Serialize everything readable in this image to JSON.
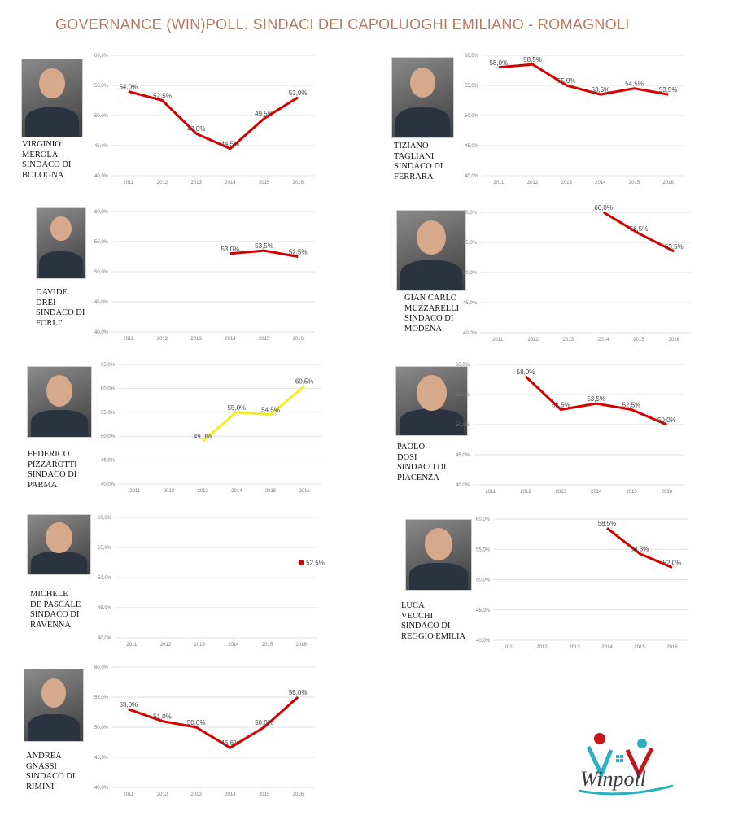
{
  "title": "GOVERNANCE (WIN)POLL. SINDACI DEI CAPOLUOGHI EMILIANO - ROMAGNOLI",
  "logo": {
    "text": "winpoll",
    "colors": {
      "red": "#c4161c",
      "teal": "#2ab0bf"
    }
  },
  "colors": {
    "line_default": "#d40000",
    "line_parma": "#f2ee22",
    "title": "#b8785a",
    "grid": "#e2e2e2"
  },
  "chart_data": [
    {
      "type": "line",
      "id": "bologna",
      "caption": [
        "VIRGINIO",
        "MEROLA",
        "SINDACO DI",
        "BOLOGNA"
      ],
      "categories": [
        "2011",
        "2012",
        "2013",
        "2014",
        "2015",
        "2016"
      ],
      "yticks": [
        "40,0%",
        "45,0%",
        "50,0%",
        "55,0%",
        "60,0%"
      ],
      "ylim": [
        40,
        60
      ],
      "values": [
        54.0,
        52.5,
        47.0,
        44.5,
        49.5,
        53.0
      ],
      "labels": [
        "54,0%",
        "52,5%",
        "47,0%",
        "44,5%",
        "49,5%",
        "53,0%"
      ],
      "color": "#d40000"
    },
    {
      "type": "line",
      "id": "ferrara",
      "caption": [
        "TIZIANO",
        "TAGLIANI",
        "SINDACO DI",
        "FERRARA"
      ],
      "categories": [
        "2011",
        "2012",
        "2013",
        "2014",
        "2015",
        "2016"
      ],
      "yticks": [
        "40,0%",
        "45,0%",
        "50,0%",
        "55,0%",
        "60,0%"
      ],
      "ylim": [
        40,
        60
      ],
      "values": [
        58.0,
        58.5,
        55.0,
        53.5,
        54.5,
        53.5
      ],
      "labels": [
        "58,0%",
        "58,5%",
        "55,0%",
        "53,5%",
        "54,5%",
        "53,5%"
      ],
      "color": "#d40000"
    },
    {
      "type": "line",
      "id": "forli",
      "caption": [
        "DAVIDE",
        "DREI",
        "SINDACO DI",
        "FORLI'"
      ],
      "categories": [
        "2011",
        "2012",
        "2013",
        "2014",
        "2015",
        "2016"
      ],
      "yticks": [
        "40,0%",
        "45,0%",
        "50,0%",
        "55,0%",
        "60,0%"
      ],
      "ylim": [
        40,
        60
      ],
      "values": [
        null,
        null,
        null,
        53.0,
        53.5,
        52.5
      ],
      "labels": [
        null,
        null,
        null,
        "53,0%",
        "53,5%",
        "52,5%"
      ],
      "color": "#d40000"
    },
    {
      "type": "line",
      "id": "modena",
      "caption": [
        "GIAN CARLO",
        "MUZZARELLI",
        "SINDACO DI",
        "MODENA"
      ],
      "categories": [
        "2011",
        "2012",
        "2013",
        "2014",
        "2015",
        "2016"
      ],
      "yticks": [
        "40,0%",
        "45,0%",
        "50,0%",
        "55,0%",
        "60,0%"
      ],
      "ylim": [
        40,
        60
      ],
      "values": [
        null,
        null,
        null,
        60.0,
        56.5,
        53.5
      ],
      "labels": [
        null,
        null,
        null,
        "60,0%",
        "56,5%",
        "53,5%"
      ],
      "color": "#d40000"
    },
    {
      "type": "line",
      "id": "parma",
      "caption": [
        "FEDERICO",
        "PIZZAROTTI",
        "SINDACO DI",
        "PARMA"
      ],
      "categories": [
        "2011",
        "2012",
        "2013",
        "2014",
        "2015",
        "2016"
      ],
      "yticks": [
        "40,0%",
        "45,0%",
        "50,0%",
        "55,0%",
        "60,0%",
        "65,0%"
      ],
      "ylim": [
        40,
        65
      ],
      "values": [
        null,
        null,
        49.0,
        55.0,
        54.5,
        60.5
      ],
      "labels": [
        null,
        null,
        "49,0%",
        "55,0%",
        "54,5%",
        "60,5%"
      ],
      "color": "#f2ee22"
    },
    {
      "type": "line",
      "id": "piacenza",
      "caption": [
        "PAOLO",
        "DOSI",
        "SINDACO DI",
        "PIACENZA"
      ],
      "categories": [
        "2011",
        "2012",
        "2013",
        "2014",
        "2015",
        "2016"
      ],
      "yticks": [
        "40,0%",
        "45,0%",
        "50,0%",
        "55,0%",
        "60,0%"
      ],
      "ylim": [
        40,
        60
      ],
      "values": [
        null,
        58.0,
        52.5,
        53.5,
        52.5,
        50.0
      ],
      "labels": [
        null,
        "58,0%",
        "52,5%",
        "53,5%",
        "52,5%",
        "50,0%"
      ],
      "color": "#d40000"
    },
    {
      "type": "line",
      "id": "ravenna",
      "caption": [
        "MICHELE",
        "DE PASCALE",
        "SINDACO DI",
        "RAVENNA"
      ],
      "categories": [
        "2011",
        "2012",
        "2013",
        "2014",
        "2015",
        "2016"
      ],
      "yticks": [
        "40,0%",
        "45,0%",
        "50,0%",
        "55,0%",
        "60,0%"
      ],
      "ylim": [
        40,
        60
      ],
      "values": [
        null,
        null,
        null,
        null,
        null,
        52.5
      ],
      "labels": [
        null,
        null,
        null,
        null,
        null,
        "52,5%"
      ],
      "color": "#d40000"
    },
    {
      "type": "line",
      "id": "reggio-emilia",
      "caption": [
        "LUCA",
        "VECCHI",
        "SINDACO DI",
        "REGGIO EMILIA"
      ],
      "categories": [
        "2011",
        "2012",
        "2013",
        "2014",
        "2015",
        "2016"
      ],
      "yticks": [
        "40,0%",
        "45,0%",
        "50,0%",
        "55,0%",
        "60,0%"
      ],
      "ylim": [
        40,
        60
      ],
      "values": [
        null,
        null,
        null,
        58.5,
        54.3,
        52.0
      ],
      "labels": [
        null,
        null,
        null,
        "58,5%",
        "54,3%",
        "52,0%"
      ],
      "color": "#d40000"
    },
    {
      "type": "line",
      "id": "rimini",
      "caption": [
        "ANDREA",
        "GNASSI",
        "SINDACO DI",
        "RIMINI"
      ],
      "categories": [
        "2011",
        "2012",
        "2013",
        "2014",
        "2015",
        "2016"
      ],
      "yticks": [
        "40,0%",
        "45,0%",
        "50,0%",
        "55,0%",
        "60,0%"
      ],
      "ylim": [
        40,
        60
      ],
      "values": [
        53.0,
        51.0,
        50.0,
        46.6,
        50.0,
        55.0
      ],
      "labels": [
        "53,0%",
        "51,0%",
        "50,0%",
        "46,6%",
        "50,0%",
        "55,0%"
      ],
      "color": "#d40000"
    }
  ]
}
